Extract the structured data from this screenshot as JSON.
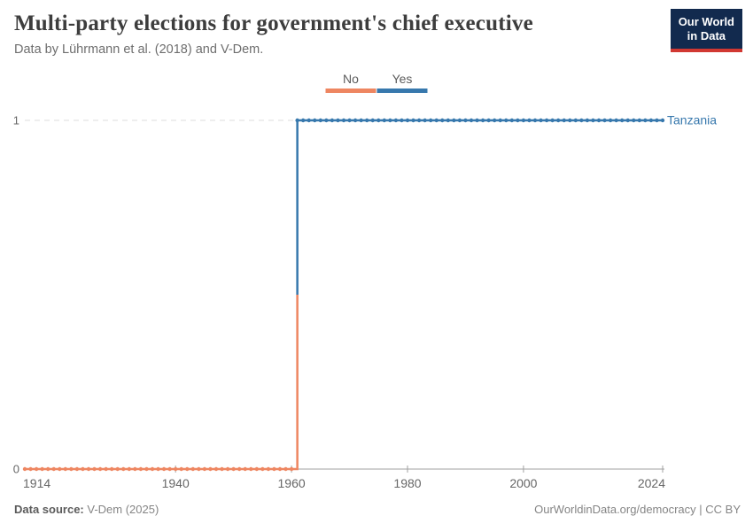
{
  "header": {
    "title": "Multi-party elections for government's chief executive",
    "subtitle": "Data by Lührmann et al. (2018) and V-Dem.",
    "logo": {
      "line1": "Our World",
      "line2": "in Data"
    }
  },
  "legend": {
    "items": [
      {
        "label": "No",
        "color": "#ee8661"
      },
      {
        "label": "Yes",
        "color": "#3778ad"
      }
    ]
  },
  "chart_data": {
    "type": "line",
    "subtype": "step",
    "entity": "Tanzania",
    "entity_color": "#3778ad",
    "x_range": [
      1914,
      2024
    ],
    "x_ticks": [
      1914,
      1940,
      1960,
      1980,
      2000,
      2024
    ],
    "y_ticks": [
      0,
      1
    ],
    "ylim": [
      0,
      1
    ],
    "grid": "dashed-at-1-solid-axis-at-0",
    "legend_position": "top-center",
    "steps": [
      {
        "label": "No",
        "color": "#ee8661",
        "from": 1914,
        "to": 1960,
        "value": 0
      },
      {
        "label": "Yes",
        "color": "#3778ad",
        "from": 1961,
        "to": 2024,
        "value": 1
      }
    ],
    "transition_year": 1961,
    "markers_every_year": true
  },
  "footer": {
    "source_label": "Data source:",
    "source_value": " V-Dem (2025)",
    "right": "OurWorldinData.org/democracy | CC BY"
  }
}
